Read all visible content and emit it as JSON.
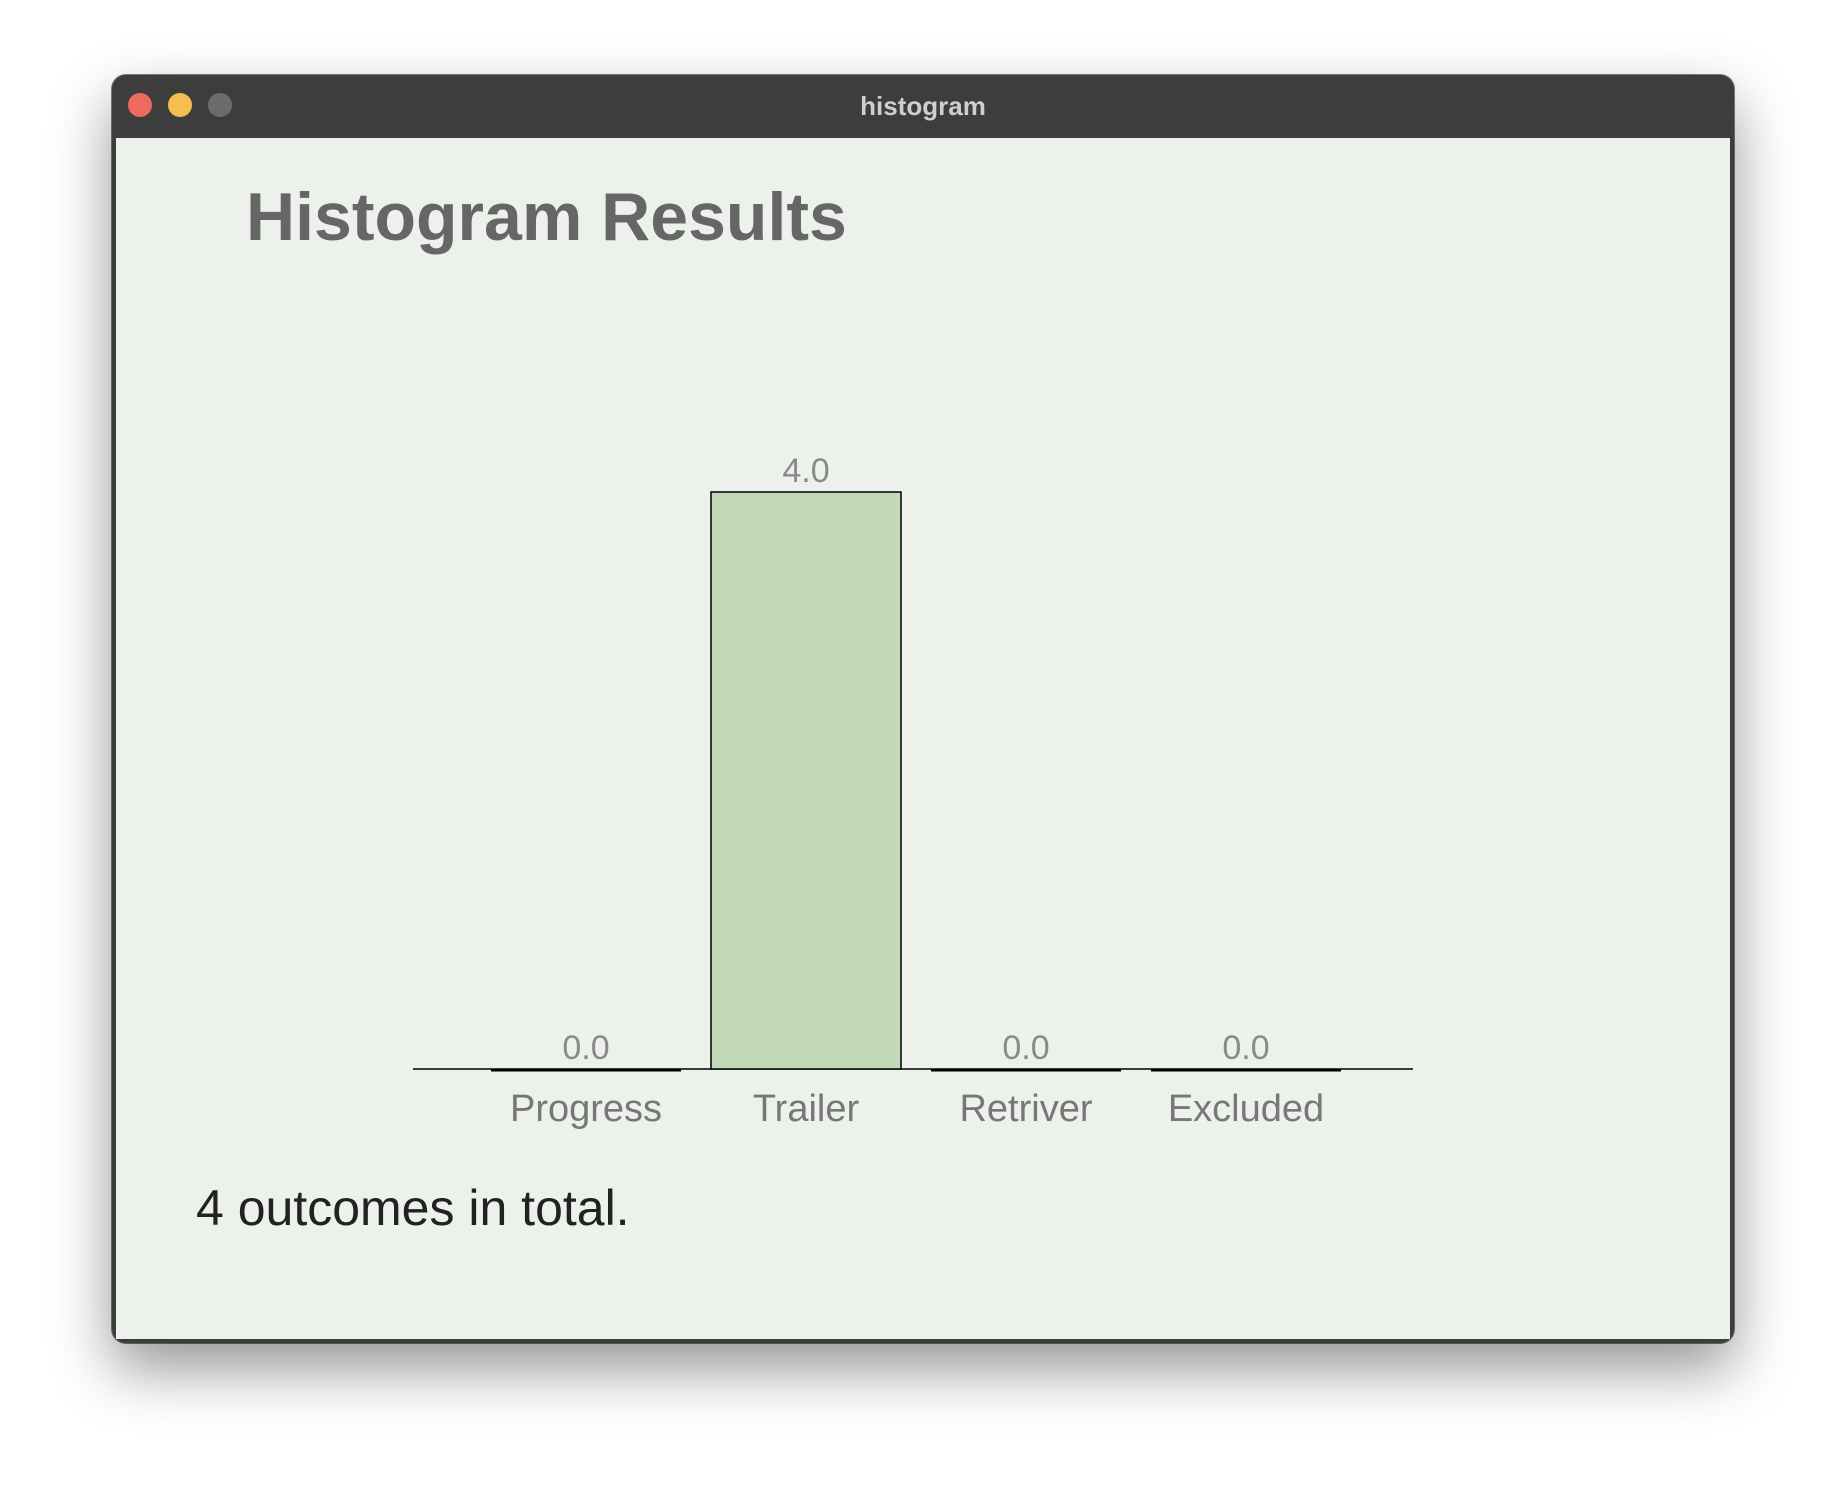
{
  "window": {
    "title": "histogram",
    "controls": {
      "close_color": "#ee6a5f",
      "minimize_color": "#f5be4f",
      "maximize_color": "#6b6b6b"
    }
  },
  "page": {
    "heading": "Histogram Results",
    "summary": "4 outcomes in total."
  },
  "chart_data": {
    "type": "bar",
    "categories": [
      "Progress",
      "Trailer",
      "Retriver",
      "Excluded"
    ],
    "values": [
      0.0,
      4.0,
      0.0,
      0.0
    ],
    "value_labels": [
      "0.0",
      "4.0",
      "0.0",
      "0.0"
    ],
    "title": "",
    "xlabel": "",
    "ylabel": "",
    "ylim": [
      0,
      4
    ],
    "grid": false,
    "legend": "none",
    "bar_color": "#c1d9b8",
    "bar_edge_color": "#000000",
    "label_color": "#777777"
  }
}
